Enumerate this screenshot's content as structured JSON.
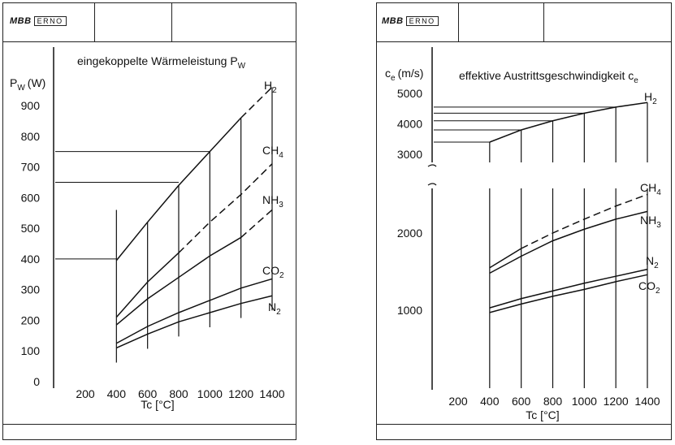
{
  "header": {
    "logo_mbb": "MBB",
    "logo_erno": "ERNO"
  },
  "chart_data": [
    {
      "type": "line",
      "title": "eingekoppelte Wärmeleistung P",
      "title_sub": "W",
      "ylabel": "P",
      "ylabel_sub": "W",
      "ylabel_unit": "(W)",
      "xlabel": "Tc [°C]",
      "x_ticks": [
        200,
        400,
        600,
        800,
        1000,
        1200,
        1400
      ],
      "y_ticks": [
        0,
        100,
        200,
        300,
        400,
        500,
        600,
        700,
        800,
        900
      ],
      "xlim": [
        0,
        1400
      ],
      "ylim": [
        0,
        950
      ],
      "series": [
        {
          "name": "H2",
          "label_main": "H",
          "label_sub": "2",
          "solid_until": 1200,
          "x": [
            400,
            600,
            800,
            1000,
            1200,
            1400
          ],
          "y": [
            395,
            520,
            640,
            750,
            860,
            960
          ]
        },
        {
          "name": "CH4",
          "label_main": "CH",
          "label_sub": "4",
          "solid_until": 800,
          "x": [
            400,
            600,
            800,
            1000,
            1200,
            1400
          ],
          "y": [
            210,
            325,
            420,
            520,
            610,
            710
          ]
        },
        {
          "name": "NH3",
          "label_main": "NH",
          "label_sub": "3",
          "solid_until": 1200,
          "x": [
            400,
            600,
            800,
            1000,
            1200,
            1400
          ],
          "y": [
            185,
            270,
            340,
            410,
            470,
            560
          ]
        },
        {
          "name": "CO2",
          "label_main": "CO",
          "label_sub": "2",
          "solid_until": 1400,
          "x": [
            400,
            600,
            800,
            1000,
            1200,
            1400
          ],
          "y": [
            125,
            180,
            225,
            265,
            305,
            335
          ]
        },
        {
          "name": "N2",
          "label_main": "N",
          "label_sub": "2",
          "solid_until": 1400,
          "x": [
            400,
            600,
            800,
            1000,
            1200,
            1400
          ],
          "y": [
            110,
            155,
            195,
            225,
            255,
            280
          ]
        }
      ]
    },
    {
      "type": "line",
      "title": "effektive Austrittsgeschwindigkeit c",
      "title_sub": "e",
      "ylabel": "c",
      "ylabel_sub": "e",
      "ylabel_unit": "(m/s)",
      "xlabel": "Tc [°C]",
      "x_ticks": [
        200,
        400,
        600,
        800,
        1000,
        1200,
        1400
      ],
      "y_ticks_upper": [
        3000,
        4000,
        5000
      ],
      "y_ticks_lower": [
        1000,
        2000
      ],
      "xlim": [
        0,
        1400
      ],
      "ylim_upper": [
        2800,
        5100
      ],
      "ylim_lower": [
        0,
        2600
      ],
      "broken_axis": true,
      "series": [
        {
          "name": "H2",
          "label_main": "H",
          "label_sub": "2",
          "panel": "upper",
          "solid_until": 1400,
          "x": [
            400,
            600,
            800,
            1000,
            1200,
            1400
          ],
          "y": [
            3400,
            3800,
            4100,
            4350,
            4550,
            4700
          ]
        },
        {
          "name": "CH4",
          "label_main": "CH",
          "label_sub": "4",
          "panel": "lower",
          "solid_until": 600,
          "x": [
            400,
            600,
            800,
            1000,
            1200,
            1400
          ],
          "y": [
            1550,
            1800,
            2000,
            2180,
            2350,
            2500
          ]
        },
        {
          "name": "NH3",
          "label_main": "NH",
          "label_sub": "3",
          "panel": "lower",
          "solid_until": 1400,
          "x": [
            400,
            600,
            800,
            1000,
            1200,
            1400
          ],
          "y": [
            1480,
            1700,
            1900,
            2050,
            2180,
            2280
          ]
        },
        {
          "name": "N2",
          "label_main": "N",
          "label_sub": "2",
          "panel": "lower",
          "solid_until": 1400,
          "x": [
            400,
            600,
            800,
            1000,
            1200,
            1400
          ],
          "y": [
            1030,
            1150,
            1250,
            1350,
            1440,
            1530
          ]
        },
        {
          "name": "CO2",
          "label_main": "CO",
          "label_sub": "2",
          "panel": "lower",
          "solid_until": 1400,
          "x": [
            400,
            600,
            800,
            1000,
            1200,
            1400
          ],
          "y": [
            970,
            1080,
            1180,
            1270,
            1370,
            1460
          ]
        }
      ]
    }
  ]
}
